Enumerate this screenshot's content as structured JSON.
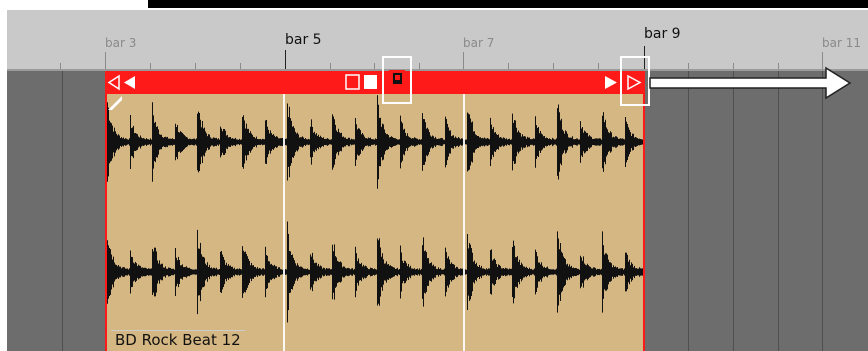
{
  "ruler": {
    "labels": [
      {
        "text": "bar 3",
        "major": false
      },
      {
        "text": "bar 5",
        "major": true
      },
      {
        "text": "bar 7",
        "major": false
      },
      {
        "text": "bar 9",
        "major": true
      },
      {
        "text": "bar 11",
        "major": false
      }
    ]
  },
  "clip": {
    "name": "BD Rock Beat 12",
    "color": "#ff1a1a",
    "body_color": "#d4b783"
  },
  "icons": {
    "left_fade": "fade-in-triangle-icon",
    "right_fade": "fade-out-triangle-icon",
    "loop": "loop-start-icon",
    "extend": "extend-arrow-icon"
  }
}
